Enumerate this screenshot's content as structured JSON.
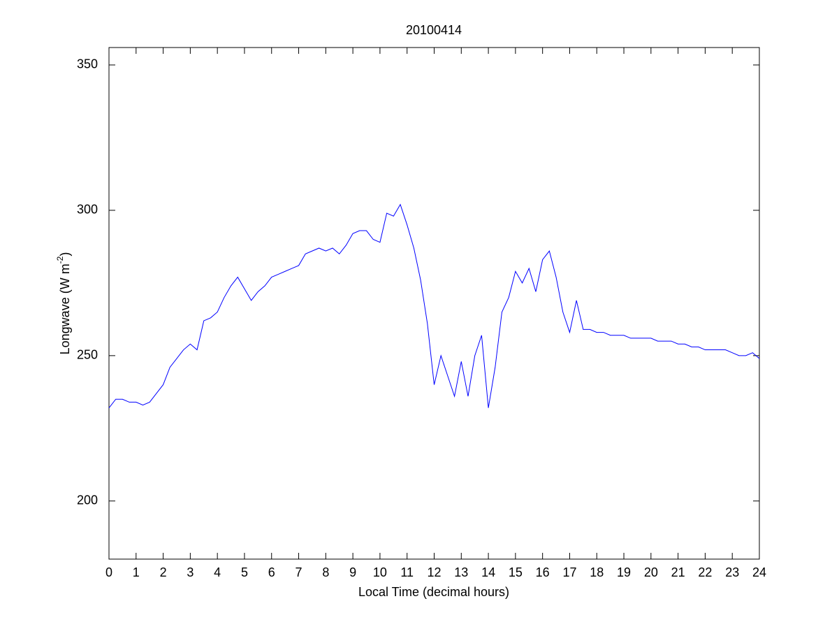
{
  "chart_data": {
    "type": "line",
    "title": "20100414",
    "x_label": "Local Time (decimal hours)",
    "y_label": [
      "Longwave (W m",
      "-2",
      ")"
    ],
    "x": [
      0,
      0.25,
      0.5,
      0.75,
      1,
      1.25,
      1.5,
      1.75,
      2,
      2.25,
      2.5,
      2.75,
      3,
      3.25,
      3.5,
      3.75,
      4,
      4.25,
      4.5,
      4.75,
      5,
      5.25,
      5.5,
      5.75,
      6,
      6.25,
      6.5,
      6.75,
      7,
      7.25,
      7.5,
      7.75,
      8,
      8.25,
      8.5,
      8.75,
      9,
      9.25,
      9.5,
      9.75,
      10,
      10.25,
      10.5,
      10.75,
      11,
      11.25,
      11.5,
      11.75,
      12,
      12.25,
      12.5,
      12.75,
      13,
      13.25,
      13.5,
      13.75,
      14,
      14.25,
      14.5,
      14.75,
      15,
      15.25,
      15.5,
      15.75,
      16,
      16.25,
      16.5,
      16.75,
      17,
      17.25,
      17.5,
      17.75,
      18,
      18.25,
      18.5,
      18.75,
      19,
      19.25,
      19.5,
      19.75,
      20,
      20.25,
      20.5,
      20.75,
      21,
      21.25,
      21.5,
      21.75,
      22,
      22.25,
      22.5,
      22.75,
      23,
      23.25,
      23.5,
      23.75,
      24
    ],
    "series": [
      {
        "color": "#0000ff",
        "values": [
          232,
          235,
          235,
          234,
          234,
          233,
          234,
          237,
          240,
          246,
          249,
          252,
          254,
          252,
          262,
          263,
          265,
          270,
          274,
          277,
          273,
          269,
          272,
          274,
          277,
          278,
          279,
          280,
          281,
          285,
          286,
          287,
          286,
          287,
          285,
          288,
          292,
          293,
          293,
          290,
          289,
          299,
          298,
          302,
          295,
          287,
          276,
          261,
          240,
          250,
          243,
          236,
          248,
          236,
          250,
          257,
          232,
          246,
          265,
          270,
          279,
          275,
          280,
          272,
          283,
          286,
          277,
          265,
          258,
          269,
          259,
          259,
          258,
          258,
          257,
          257,
          257,
          256,
          256,
          256,
          256,
          255,
          255,
          255,
          254,
          254,
          253,
          253,
          252,
          252,
          252,
          252,
          251,
          250,
          250,
          251,
          249
        ]
      }
    ],
    "xlim": [
      0,
      24
    ],
    "ylim": [
      180,
      356
    ],
    "xticks": [
      0,
      1,
      2,
      3,
      4,
      5,
      6,
      7,
      8,
      9,
      10,
      11,
      12,
      13,
      14,
      15,
      16,
      17,
      18,
      19,
      20,
      21,
      22,
      23,
      24
    ],
    "yticks": [
      200,
      250,
      300,
      350
    ],
    "grid": false
  }
}
